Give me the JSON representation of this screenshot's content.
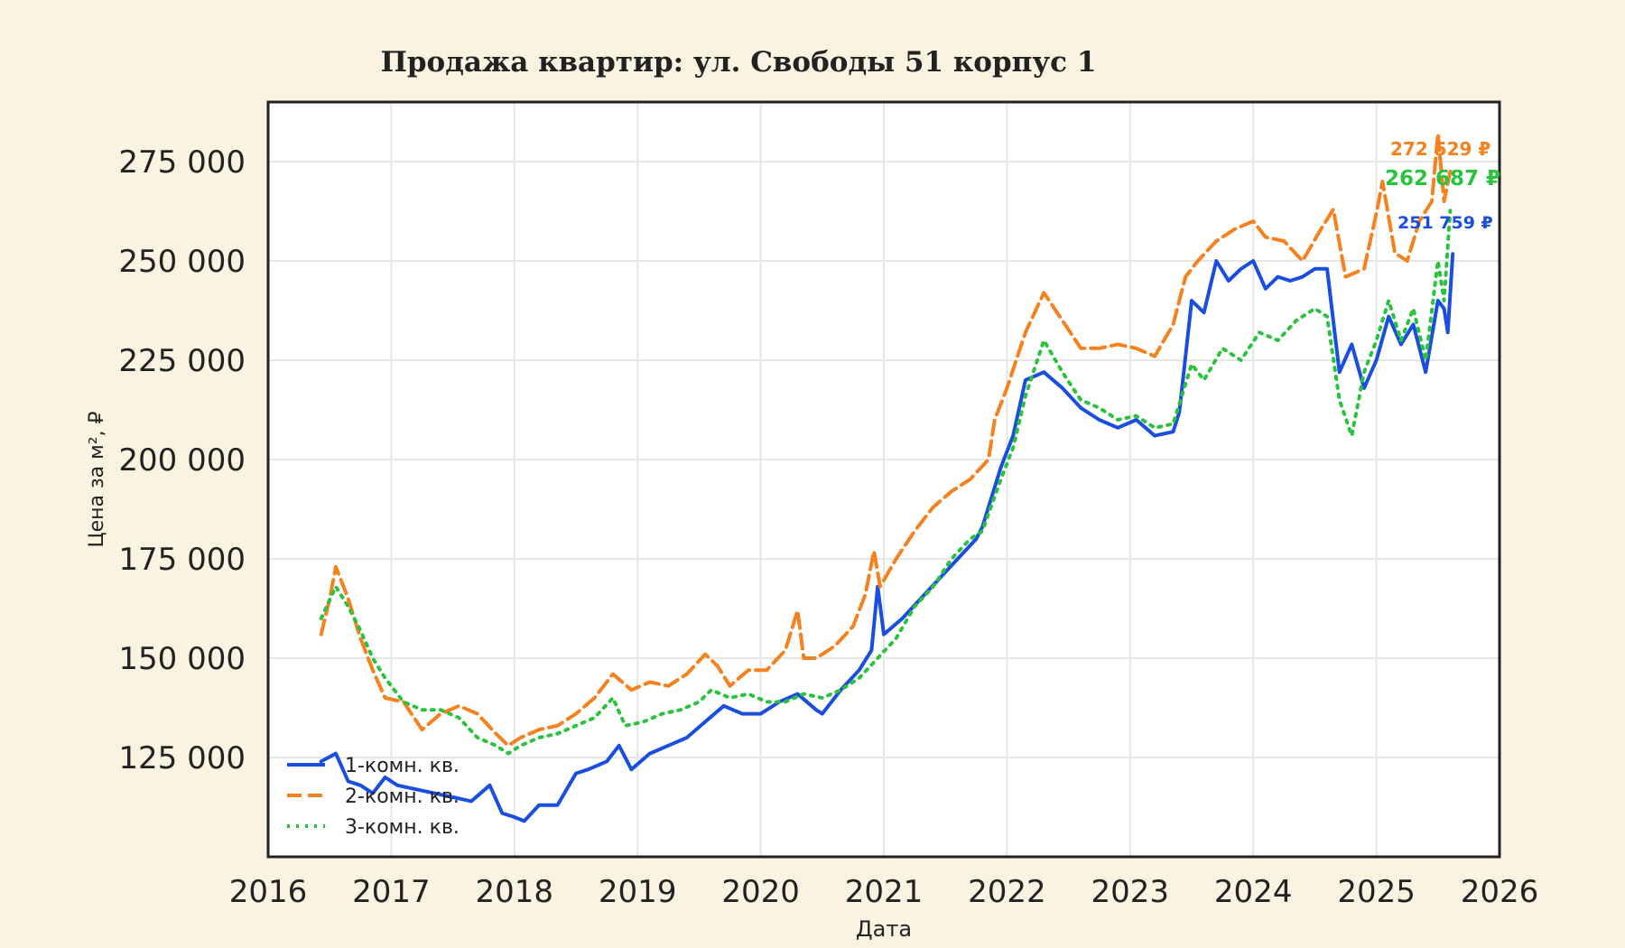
{
  "chart_data": {
    "type": "line",
    "title": "Продажа квартир: ул. Свободы 51 корпус 1",
    "xlabel": "Дата",
    "ylabel": "Цена за м², ₽",
    "xlim": [
      2016,
      2026
    ],
    "ylim": [
      100000,
      290000
    ],
    "x_ticks": [
      2016,
      2017,
      2018,
      2019,
      2020,
      2021,
      2022,
      2023,
      2024,
      2025,
      2026
    ],
    "x_tick_labels": [
      "2016",
      "2017",
      "2018",
      "2019",
      "2020",
      "2021",
      "2022",
      "2023",
      "2024",
      "2025",
      "2026"
    ],
    "y_ticks": [
      125000,
      150000,
      175000,
      200000,
      225000,
      250000,
      275000
    ],
    "y_tick_labels": [
      "125 000",
      "150 000",
      "175 000",
      "200 000",
      "225 000",
      "250 000",
      "275 000"
    ],
    "grid": true,
    "legend_position": "bottom-left",
    "series": [
      {
        "name": "1-комн. кв.",
        "color": "#1a4ee0",
        "style": "solid",
        "last_label": "251 759 ₽",
        "x": [
          2016.43,
          2016.55,
          2016.65,
          2016.75,
          2016.85,
          2016.95,
          2017.05,
          2017.2,
          2017.35,
          2017.5,
          2017.65,
          2017.8,
          2017.9,
          2018.0,
          2018.08,
          2018.2,
          2018.35,
          2018.5,
          2018.6,
          2018.75,
          2018.85,
          2018.95,
          2019.1,
          2019.25,
          2019.4,
          2019.55,
          2019.7,
          2019.85,
          2020.0,
          2020.15,
          2020.3,
          2020.45,
          2020.5,
          2020.65,
          2020.8,
          2020.9,
          2020.95,
          2021.0,
          2021.15,
          2021.3,
          2021.45,
          2021.6,
          2021.75,
          2021.8,
          2021.95,
          2022.05,
          2022.15,
          2022.3,
          2022.45,
          2022.6,
          2022.75,
          2022.9,
          2023.05,
          2023.2,
          2023.35,
          2023.4,
          2023.5,
          2023.6,
          2023.7,
          2023.8,
          2023.9,
          2024.0,
          2024.1,
          2024.2,
          2024.3,
          2024.4,
          2024.5,
          2024.6,
          2024.7,
          2024.8,
          2024.9,
          2025.0,
          2025.1,
          2025.2,
          2025.3,
          2025.4,
          2025.5,
          2025.55,
          2025.58,
          2025.62
        ],
        "y": [
          124000,
          126000,
          119000,
          118000,
          116000,
          120000,
          118000,
          117000,
          116000,
          115000,
          114000,
          118000,
          111000,
          110000,
          109000,
          113000,
          113000,
          121000,
          122000,
          124000,
          128000,
          122000,
          126000,
          128000,
          130000,
          134000,
          138000,
          136000,
          136000,
          139000,
          141000,
          137000,
          136000,
          142000,
          147000,
          152000,
          168000,
          156000,
          160000,
          165000,
          170000,
          175000,
          180000,
          183000,
          198000,
          206000,
          220000,
          222000,
          218000,
          213000,
          210000,
          208000,
          210000,
          206000,
          207000,
          212000,
          240000,
          237000,
          250000,
          245000,
          248000,
          250000,
          243000,
          246000,
          245000,
          246000,
          248000,
          248000,
          222000,
          229000,
          218000,
          225000,
          236000,
          229000,
          234000,
          222000,
          240000,
          238000,
          232000,
          251759
        ]
      },
      {
        "name": "2-комн. кв.",
        "color": "#f5821f",
        "style": "dashed",
        "last_label": "272 529 ₽",
        "x": [
          2016.43,
          2016.5,
          2016.55,
          2016.65,
          2016.75,
          2016.85,
          2016.95,
          2017.1,
          2017.25,
          2017.4,
          2017.55,
          2017.7,
          2017.85,
          2017.95,
          2018.05,
          2018.2,
          2018.35,
          2018.5,
          2018.65,
          2018.8,
          2018.95,
          2019.1,
          2019.25,
          2019.4,
          2019.55,
          2019.65,
          2019.75,
          2019.9,
          2020.05,
          2020.2,
          2020.3,
          2020.35,
          2020.45,
          2020.6,
          2020.75,
          2020.85,
          2020.92,
          2020.97,
          2021.1,
          2021.25,
          2021.4,
          2021.55,
          2021.7,
          2021.85,
          2021.9,
          2022.0,
          2022.15,
          2022.3,
          2022.45,
          2022.6,
          2022.75,
          2022.9,
          2023.05,
          2023.2,
          2023.35,
          2023.45,
          2023.55,
          2023.7,
          2023.85,
          2024.0,
          2024.1,
          2024.25,
          2024.4,
          2024.55,
          2024.65,
          2024.75,
          2024.9,
          2025.0,
          2025.05,
          2025.15,
          2025.25,
          2025.35,
          2025.45,
          2025.5,
          2025.55,
          2025.6
        ],
        "y": [
          156000,
          165000,
          173000,
          165000,
          155000,
          147000,
          140000,
          139000,
          132000,
          136000,
          138000,
          136000,
          131000,
          128000,
          130000,
          132000,
          133000,
          136000,
          140000,
          146000,
          142000,
          144000,
          143000,
          146000,
          151000,
          148000,
          143000,
          147000,
          147000,
          152000,
          162000,
          150000,
          150000,
          153000,
          158000,
          166000,
          177000,
          168000,
          175000,
          182000,
          188000,
          192000,
          195000,
          200000,
          210000,
          218000,
          232000,
          242000,
          235000,
          228000,
          228000,
          229000,
          228000,
          226000,
          234000,
          246000,
          250000,
          255000,
          258000,
          260000,
          256000,
          255000,
          250000,
          258000,
          263000,
          246000,
          248000,
          262000,
          270000,
          252000,
          250000,
          260000,
          265000,
          282000,
          265000,
          272529
        ]
      },
      {
        "name": "3-комн. кв.",
        "color": "#2bc33e",
        "style": "dotted",
        "last_label": "262 687 ₽",
        "x": [
          2016.43,
          2016.55,
          2016.65,
          2016.75,
          2016.85,
          2016.95,
          2017.1,
          2017.25,
          2017.4,
          2017.55,
          2017.7,
          2017.85,
          2017.95,
          2018.05,
          2018.2,
          2018.35,
          2018.5,
          2018.65,
          2018.8,
          2018.9,
          2019.05,
          2019.2,
          2019.35,
          2019.5,
          2019.6,
          2019.75,
          2019.9,
          2020.05,
          2020.2,
          2020.35,
          2020.5,
          2020.65,
          2020.8,
          2020.95,
          2021.1,
          2021.25,
          2021.4,
          2021.55,
          2021.7,
          2021.8,
          2021.95,
          2022.05,
          2022.15,
          2022.3,
          2022.45,
          2022.6,
          2022.75,
          2022.9,
          2023.05,
          2023.2,
          2023.35,
          2023.5,
          2023.6,
          2023.75,
          2023.9,
          2024.05,
          2024.2,
          2024.35,
          2024.5,
          2024.6,
          2024.7,
          2024.8,
          2024.9,
          2025.0,
          2025.1,
          2025.2,
          2025.3,
          2025.4,
          2025.5,
          2025.55,
          2025.6
        ],
        "y": [
          160000,
          168000,
          163000,
          157000,
          150000,
          145000,
          139000,
          137000,
          137000,
          135000,
          130000,
          128000,
          126000,
          128000,
          130000,
          131000,
          133000,
          135000,
          140000,
          133000,
          134000,
          136000,
          137000,
          139000,
          142000,
          140000,
          141000,
          139000,
          139000,
          141000,
          140000,
          142000,
          145000,
          150000,
          155000,
          163000,
          168000,
          175000,
          180000,
          182000,
          195000,
          203000,
          216000,
          230000,
          222000,
          215000,
          213000,
          210000,
          211000,
          208000,
          209000,
          224000,
          220000,
          228000,
          225000,
          232000,
          230000,
          235000,
          238000,
          236000,
          215000,
          206000,
          222000,
          230000,
          240000,
          230000,
          238000,
          225000,
          250000,
          240000,
          262687
        ]
      }
    ]
  }
}
